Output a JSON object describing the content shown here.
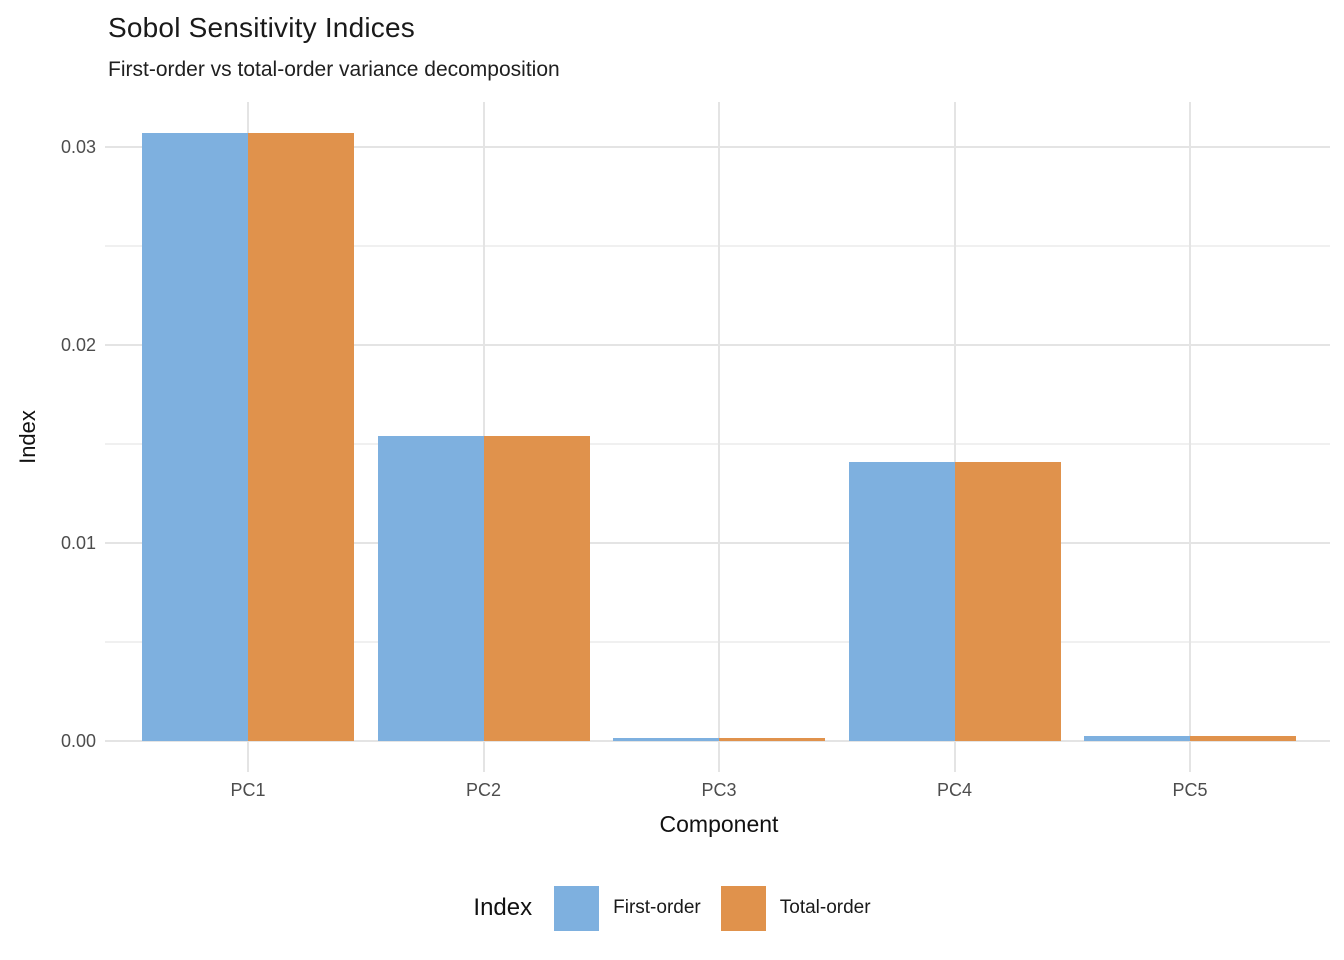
{
  "title": "Sobol Sensitivity Indices",
  "subtitle": "First-order vs total-order variance decomposition",
  "chart_data": {
    "type": "bar",
    "categories": [
      "PC1",
      "PC2",
      "PC3",
      "PC4",
      "PC5"
    ],
    "series": [
      {
        "name": "First-order",
        "color": "#7EB0DF",
        "values": [
          0.0307,
          0.0154,
          0.00015,
          0.0141,
          0.00025
        ]
      },
      {
        "name": "Total-order",
        "color": "#E0924C",
        "values": [
          0.0307,
          0.0154,
          0.00015,
          0.0141,
          0.00025
        ]
      }
    ],
    "title": "Sobol Sensitivity Indices",
    "subtitle": "First-order vs total-order variance decomposition",
    "xlabel": "Component",
    "ylabel": "Index",
    "ylim": [
      0,
      0.0307
    ],
    "yticks_major": [
      0,
      0.01,
      0.02,
      0.03
    ],
    "ytick_labels": [
      "0.00",
      "0.01",
      "0.02",
      "0.03"
    ],
    "yticks_minor": [
      0.005,
      0.015,
      0.025
    ],
    "grid": true,
    "legend_title": "Index",
    "legend_position": "bottom"
  },
  "colors": {
    "background": "#FFFFFF",
    "first_order": "#7EB0DF",
    "total_order": "#E0924C",
    "grid_major": "#E4E4E4",
    "grid_minor": "#F0F0F0",
    "tick_label": "#4D4D4D",
    "text": "#111111"
  }
}
